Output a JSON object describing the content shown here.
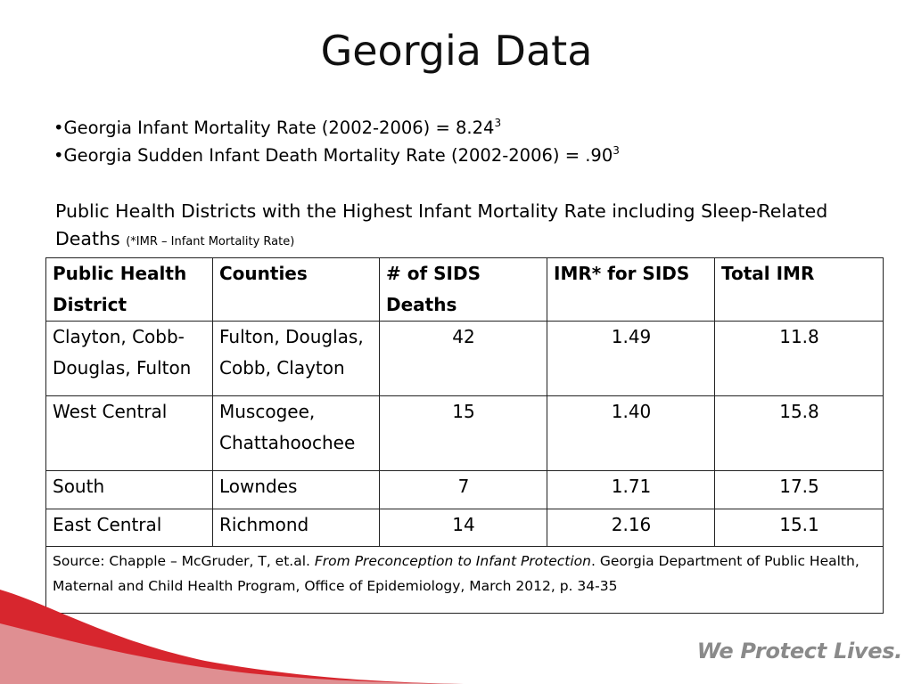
{
  "title": "Georgia Data",
  "bullets": [
    {
      "text": "•Georgia Infant Mortality Rate (2002-2006) = 8.24",
      "sup": "3"
    },
    {
      "text": "•Georgia Sudden Infant Death Mortality Rate (2002-2006) = .90",
      "sup": "3"
    }
  ],
  "intro": {
    "text": "Public Health Districts with the Highest Infant Mortality Rate including Sleep-Related Deaths",
    "note": "(*IMR – Infant Mortality Rate)"
  },
  "table": {
    "headers": [
      "Public Health District",
      "Counties",
      "# of SIDS Deaths",
      "IMR* for SIDS",
      "Total IMR"
    ],
    "rows": [
      [
        "Clayton, Cobb-Douglas, Fulton",
        "Fulton, Douglas, Cobb, Clayton",
        "42",
        "1.49",
        "11.8"
      ],
      [
        "West Central",
        "Muscogee, Chattahoochee",
        "15",
        "1.40",
        "15.8"
      ],
      [
        "South",
        "Lowndes",
        "7",
        "1.71",
        "17.5"
      ],
      [
        "East Central",
        "Richmond",
        "14",
        "2.16",
        "15.1"
      ]
    ],
    "source": {
      "prefix": "Source: Chapple – McGruder, T, et.al. ",
      "italic": "From Preconception to Infant Protection",
      "suffix": ". Georgia Department of Public Health, Maternal and Child Health Program, Office of Epidemiology, March 2012, p. 34-35"
    }
  },
  "footer": {
    "tagline": "We Protect Lives."
  },
  "colors": {
    "swoosh_red": "#d7262e",
    "tagline_gray": "#8a8a8a",
    "border": "#222222"
  }
}
